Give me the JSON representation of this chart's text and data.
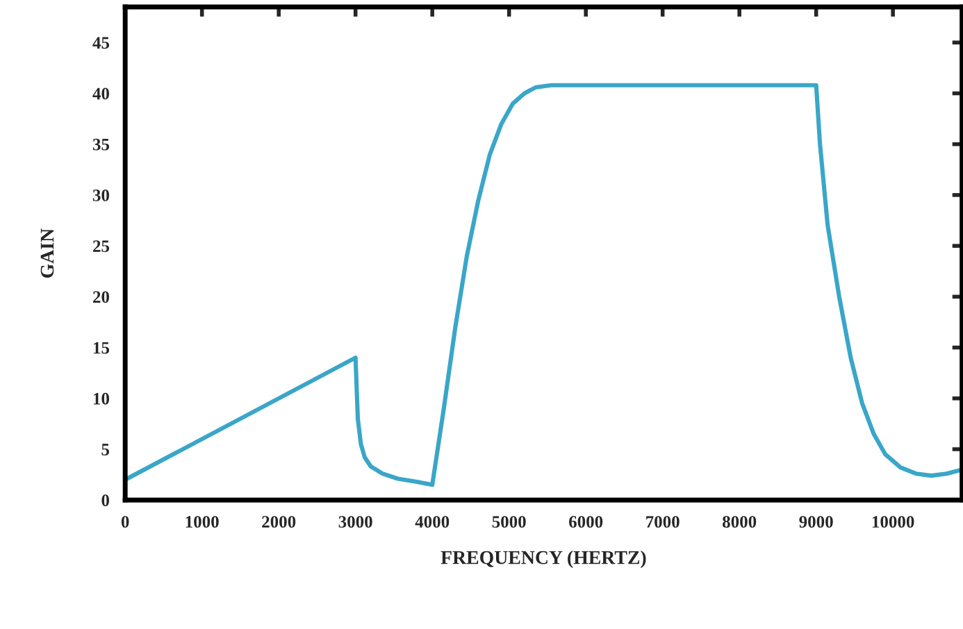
{
  "chart_data": {
    "type": "line",
    "xlabel": "FREQUENCY (HERTZ)",
    "ylabel": "GAIN",
    "xlim": [
      0,
      10900
    ],
    "ylim": [
      0,
      48.5
    ],
    "xticks": [
      0,
      1000,
      2000,
      3000,
      4000,
      5000,
      6000,
      7000,
      8000,
      9000,
      10000
    ],
    "yticks": [
      0,
      5,
      10,
      15,
      20,
      25,
      30,
      35,
      40,
      45
    ],
    "grid": false,
    "marker": "none",
    "line_style": "solid",
    "series": [
      {
        "color": "#3aa6c8",
        "x": [
          0,
          3000,
          3030,
          3070,
          3120,
          3200,
          3350,
          3550,
          3800,
          4000,
          4150,
          4300,
          4450,
          4600,
          4750,
          4900,
          5050,
          5200,
          5350,
          5550,
          9000,
          9050,
          9150,
          9300,
          9450,
          9600,
          9750,
          9900,
          10100,
          10300,
          10500,
          10700,
          10900
        ],
        "values": [
          2,
          14,
          8,
          5.5,
          4.2,
          3.3,
          2.6,
          2.1,
          1.8,
          1.5,
          9,
          17,
          24,
          29.5,
          34,
          37,
          39,
          40,
          40.6,
          40.8,
          40.8,
          35,
          27,
          20,
          14,
          9.5,
          6.5,
          4.5,
          3.2,
          2.6,
          2.4,
          2.6,
          3
        ]
      }
    ]
  }
}
